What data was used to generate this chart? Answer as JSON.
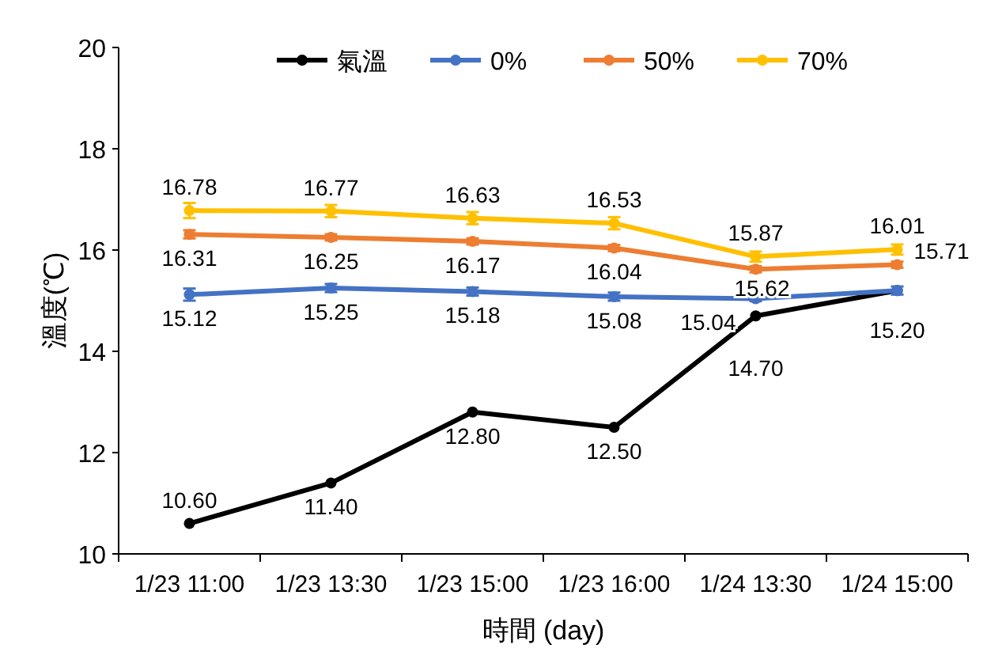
{
  "chart_data": {
    "type": "line",
    "xlabel": "時間 (day)",
    "ylabel": "溫度(℃)",
    "categories": [
      "1/23 11:00",
      "1/23 13:30",
      "1/23 15:00",
      "1/23 16:00",
      "1/24 13:30",
      "1/24 15:00"
    ],
    "ylim": [
      10,
      20
    ],
    "yticks": [
      10,
      12,
      14,
      16,
      18,
      20
    ],
    "grid": false,
    "legend": "top",
    "marker": "circle",
    "line_style": "solid",
    "series": [
      {
        "name": "氣溫",
        "color": "#000000",
        "values": [
          10.6,
          11.4,
          12.8,
          12.5,
          14.7,
          15.2
        ],
        "value_labels": [
          "10.60",
          "11.40",
          "12.80",
          "12.50",
          "14.70",
          "15.20"
        ]
      },
      {
        "name": "0%",
        "color": "#4472c4",
        "values": [
          15.12,
          15.25,
          15.18,
          15.08,
          15.04,
          15.2
        ],
        "errors": [
          0.12,
          0.08,
          0.08,
          0.08,
          0.05,
          0.08
        ],
        "value_labels": [
          "15.12",
          "15.25",
          "15.18",
          "15.08",
          "15.04",
          null
        ]
      },
      {
        "name": "50%",
        "color": "#ed7d31",
        "values": [
          16.31,
          16.25,
          16.17,
          16.04,
          15.62,
          15.71
        ],
        "errors": [
          0.08,
          0.06,
          0.06,
          0.06,
          0.06,
          0.06
        ],
        "value_labels": [
          "16.31",
          "16.25",
          "16.17",
          "16.04",
          "15.62",
          "15.71"
        ]
      },
      {
        "name": "70%",
        "color": "#ffc000",
        "values": [
          16.78,
          16.77,
          16.63,
          16.53,
          15.87,
          16.01
        ],
        "errors": [
          0.15,
          0.12,
          0.12,
          0.12,
          0.1,
          0.1
        ],
        "value_labels": [
          "16.78",
          "16.77",
          "16.63",
          "16.53",
          "15.87",
          "16.01"
        ]
      }
    ]
  }
}
